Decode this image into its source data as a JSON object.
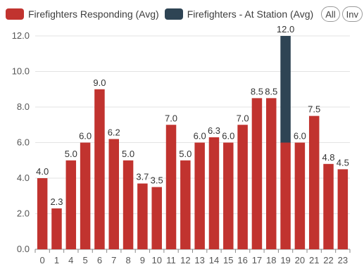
{
  "legend": {
    "series_0_label": "Firefighters Responding (Avg)",
    "series_1_label": "Firefighters - At Station (Avg)",
    "all_button": "All",
    "inv_button": "Inv"
  },
  "chart_data": {
    "type": "bar",
    "stacked": true,
    "categories": [
      "0",
      "1",
      "4",
      "5",
      "6",
      "7",
      "8",
      "9",
      "10",
      "11",
      "12",
      "13",
      "14",
      "15",
      "16",
      "17",
      "18",
      "19",
      "20",
      "21",
      "22",
      "23"
    ],
    "series": [
      {
        "name": "Firefighters Responding (Avg)",
        "color": "#c1332f",
        "values": [
          4.0,
          2.3,
          5.0,
          6.0,
          9.0,
          6.2,
          5.0,
          3.7,
          3.5,
          7.0,
          5.0,
          6.0,
          6.3,
          6.0,
          7.0,
          8.5,
          8.5,
          6.0,
          6.0,
          7.5,
          4.8,
          4.5
        ]
      },
      {
        "name": "Firefighters - At Station (Avg)",
        "color": "#2e4454",
        "values": [
          0,
          0,
          0,
          0,
          0,
          0,
          0,
          0,
          0,
          0,
          0,
          0,
          0,
          0,
          0,
          0,
          0,
          6.0,
          0,
          0,
          0,
          0
        ]
      }
    ],
    "data_labels": [
      "4.0",
      "2.3",
      "5.0",
      "6.0",
      "9.0",
      "6.2",
      "5.0",
      "3.7",
      "3.5",
      "7.0",
      "5.0",
      "6.0",
      "6.3",
      "6.0",
      "7.0",
      "8.5",
      "8.5",
      "12.0",
      "6.0",
      "7.5",
      "4.8",
      "4.5"
    ],
    "ylim": [
      0,
      12
    ],
    "yticks": [
      "0.0",
      "2.0",
      "4.0",
      "6.0",
      "8.0",
      "10.0",
      "12.0"
    ],
    "grid": true,
    "legend_position": "top-left"
  }
}
